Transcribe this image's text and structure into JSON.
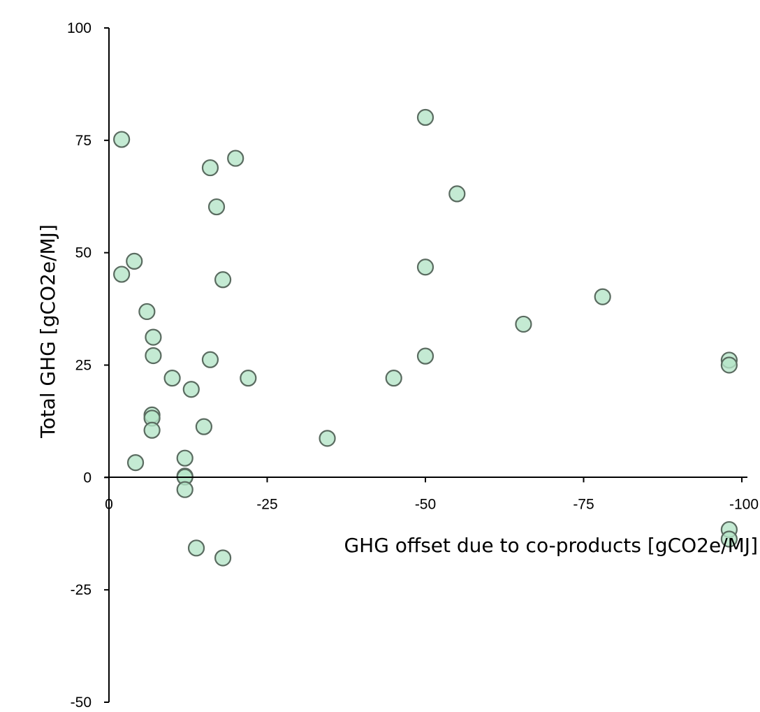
{
  "chart_data": {
    "type": "scatter",
    "title": "",
    "xlabel": "GHG offset due to co-products [gCO2e/MJ]",
    "ylabel": "Total GHG [gCO2e/MJ]",
    "xlim": [
      0,
      -100
    ],
    "ylim": [
      -50,
      100
    ],
    "x_ticks": [
      0,
      -25,
      -50,
      -75,
      -100
    ],
    "y_ticks": [
      100,
      75,
      50,
      25,
      0,
      -25,
      -50
    ],
    "x_tick_labels": [
      "0",
      "-25",
      "-50",
      "-75",
      "-100"
    ],
    "y_tick_labels": [
      "100",
      "75",
      "50",
      "25",
      "0",
      "-25",
      "-50"
    ],
    "grid": false,
    "legend": "none",
    "marker_fill": "#b5e5c8",
    "marker_edge": "#5a6b60",
    "marker_opacity": 0.8,
    "points": [
      {
        "x": -2,
        "y": 75.2
      },
      {
        "x": -2,
        "y": 45.2
      },
      {
        "x": -4,
        "y": 48.1
      },
      {
        "x": -4.2,
        "y": 3.3
      },
      {
        "x": -6,
        "y": 36.9
      },
      {
        "x": -7,
        "y": 31.2
      },
      {
        "x": -7,
        "y": 27.1
      },
      {
        "x": -6.8,
        "y": 13.9
      },
      {
        "x": -6.8,
        "y": 13.2
      },
      {
        "x": -6.8,
        "y": 10.5
      },
      {
        "x": -10,
        "y": 22.1
      },
      {
        "x": -12,
        "y": 4.3
      },
      {
        "x": -12,
        "y": 0.3
      },
      {
        "x": -12,
        "y": 0.1
      },
      {
        "x": -12,
        "y": -2.7
      },
      {
        "x": -13,
        "y": 19.6
      },
      {
        "x": -13.8,
        "y": -15.7
      },
      {
        "x": -15,
        "y": 11.3
      },
      {
        "x": -16,
        "y": 68.9
      },
      {
        "x": -16,
        "y": 26.2
      },
      {
        "x": -17,
        "y": 60.2
      },
      {
        "x": -18,
        "y": 44.0
      },
      {
        "x": -18,
        "y": -17.9
      },
      {
        "x": -20,
        "y": 71.0
      },
      {
        "x": -22,
        "y": 22.1
      },
      {
        "x": -34.5,
        "y": 8.7
      },
      {
        "x": -45,
        "y": 22.1
      },
      {
        "x": -50,
        "y": 80.1
      },
      {
        "x": -50,
        "y": 46.8
      },
      {
        "x": -50,
        "y": 27.0
      },
      {
        "x": -55,
        "y": 63.1
      },
      {
        "x": -65.5,
        "y": 34.1
      },
      {
        "x": -78,
        "y": 40.2
      },
      {
        "x": -98,
        "y": 26.1
      },
      {
        "x": -98,
        "y": 25.0
      },
      {
        "x": -98,
        "y": -11.6
      },
      {
        "x": -98,
        "y": -13.7
      }
    ]
  }
}
